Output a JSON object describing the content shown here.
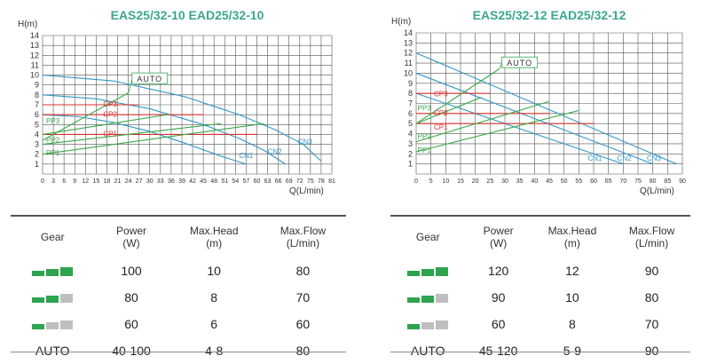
{
  "colors": {
    "grid": "#555555",
    "cn_curve": "#2f97c9",
    "cp_line": "#d9302c",
    "pp_line": "#3aa94a",
    "auto_line": "#3aa94a",
    "title": "#3aa78e",
    "gear_on": "#2ea44f",
    "gear_off": "#bfbfbf"
  },
  "chart_data": [
    {
      "type": "line",
      "title": "EAS25/32-10      EAD25/32-10",
      "ylabel": "H(m)",
      "xlabel": "Q(L/min)",
      "xlim": [
        0,
        81
      ],
      "ylim": [
        0,
        14
      ],
      "x_ticks": [
        0,
        3,
        6,
        9,
        12,
        15,
        18,
        21,
        24,
        27,
        30,
        33,
        36,
        39,
        42,
        45,
        48,
        51,
        54,
        57,
        60,
        63,
        66,
        69,
        72,
        75,
        78,
        81
      ],
      "y_ticks": [
        1,
        2,
        3,
        4,
        5,
        6,
        7,
        8,
        9,
        10,
        11,
        12,
        13,
        14
      ],
      "grid": true,
      "cn_labels": [
        "CN1",
        "CN2",
        "CN3"
      ],
      "cp_labels": [
        "CP1",
        "CP2",
        "CP3"
      ],
      "pp_labels": [
        "PP1",
        "PP2",
        "PP3"
      ],
      "auto_label": "AUTO",
      "series": [
        {
          "name": "CN1",
          "x": [
            0,
            10,
            20,
            30,
            40,
            50,
            57
          ],
          "y": [
            6,
            5.8,
            5.2,
            4.3,
            3.1,
            1.8,
            1
          ]
        },
        {
          "name": "CN2",
          "x": [
            0,
            15,
            30,
            45,
            55,
            62,
            68
          ],
          "y": [
            8,
            7.6,
            6.6,
            5,
            3.6,
            2.4,
            1
          ]
        },
        {
          "name": "CN3",
          "x": [
            0,
            20,
            40,
            55,
            65,
            73,
            78
          ],
          "y": [
            10,
            9.4,
            7.8,
            6,
            4.5,
            3,
            1.3
          ]
        },
        {
          "name": "CP1",
          "x": [
            0,
            60
          ],
          "y": [
            4,
            4
          ]
        },
        {
          "name": "CP2",
          "x": [
            0,
            45
          ],
          "y": [
            6,
            6
          ]
        },
        {
          "name": "CP3",
          "x": [
            0,
            27
          ],
          "y": [
            7,
            7
          ]
        },
        {
          "name": "PP1",
          "x": [
            0,
            62
          ],
          "y": [
            2,
            5.1
          ]
        },
        {
          "name": "PP2",
          "x": [
            0,
            50
          ],
          "y": [
            3,
            5.1
          ]
        },
        {
          "name": "PP3",
          "x": [
            0,
            35
          ],
          "y": [
            4,
            6
          ]
        },
        {
          "name": "AUTO",
          "x": [
            0,
            24
          ],
          "y": [
            3.4,
            8.2
          ]
        }
      ],
      "label_pos": {
        "CN1": [
          55,
          1.6
        ],
        "CN2": [
          63,
          2
        ],
        "CN3": [
          71.5,
          3
        ],
        "CP1": [
          17,
          3.8
        ],
        "CP2": [
          17,
          5.8
        ],
        "CP3": [
          17,
          6.8
        ],
        "PP1": [
          1,
          1.9
        ],
        "PP2": [
          1,
          3.2
        ],
        "PP3": [
          1,
          5.1
        ]
      },
      "auto_box": [
        30,
        9.5
      ]
    },
    {
      "type": "line",
      "title": "EAS25/32-12      EAD25/32-12",
      "ylabel": "H(m)",
      "xlabel": "Q(L/min)",
      "xlim": [
        0,
        90
      ],
      "ylim": [
        0,
        14
      ],
      "x_ticks": [
        0,
        5,
        10,
        15,
        20,
        25,
        30,
        35,
        40,
        45,
        50,
        55,
        60,
        65,
        70,
        75,
        80,
        85,
        90
      ],
      "y_ticks": [
        1,
        2,
        3,
        4,
        5,
        6,
        7,
        8,
        9,
        10,
        11,
        12,
        13,
        14
      ],
      "grid": true,
      "cn_labels": [
        "CN1",
        "CN2",
        "CN3"
      ],
      "cp_labels": [
        "CP1",
        "CP2",
        "CP3"
      ],
      "pp_labels": [
        "PP1",
        "PP2",
        "PP3"
      ],
      "auto_label": "AUTO",
      "series": [
        {
          "name": "CN1",
          "x": [
            0,
            70
          ],
          "y": [
            8,
            1
          ]
        },
        {
          "name": "CN2",
          "x": [
            0,
            80
          ],
          "y": [
            10,
            1
          ]
        },
        {
          "name": "CN3",
          "x": [
            0,
            88
          ],
          "y": [
            12,
            1
          ]
        },
        {
          "name": "CP1",
          "x": [
            0,
            60
          ],
          "y": [
            5,
            5
          ]
        },
        {
          "name": "CP2",
          "x": [
            0,
            45
          ],
          "y": [
            6,
            6
          ]
        },
        {
          "name": "CP3",
          "x": [
            0,
            25
          ],
          "y": [
            8,
            8
          ]
        },
        {
          "name": "PP1",
          "x": [
            0,
            55
          ],
          "y": [
            2.2,
            6.3
          ]
        },
        {
          "name": "PP2",
          "x": [
            0,
            45
          ],
          "y": [
            3.2,
            7.2
          ]
        },
        {
          "name": "PP3",
          "x": [
            0,
            22
          ],
          "y": [
            5,
            7.6
          ]
        },
        {
          "name": "AUTO",
          "x": [
            0,
            28
          ],
          "y": [
            5,
            10.4
          ]
        }
      ],
      "label_pos": {
        "CN1": [
          58,
          1.3
        ],
        "CN2": [
          68,
          1.3
        ],
        "CN3": [
          78,
          1.3
        ],
        "CP1": [
          6,
          4.4
        ],
        "CP2": [
          6,
          5.8
        ],
        "CP3": [
          6,
          7.7
        ],
        "PP1": [
          0.5,
          2.1
        ],
        "PP2": [
          0.5,
          3.5
        ],
        "PP3": [
          0.5,
          6.3
        ]
      },
      "auto_box": [
        35,
        10.9
      ]
    }
  ],
  "tables": [
    {
      "headers": [
        "Gear",
        "Power\n(W)",
        "Max.Head\n(m)",
        "Max.Flow\n(L/min)"
      ],
      "rows": [
        {
          "gear_level": 3,
          "power": "100",
          "head": "10",
          "flow": "80"
        },
        {
          "gear_level": 2,
          "power": "80",
          "head": "8",
          "flow": "70"
        },
        {
          "gear_level": 1,
          "power": "60",
          "head": "6",
          "flow": "60"
        },
        {
          "gear_text": "AUTO",
          "power": "40-100",
          "head": "4-8",
          "flow": "80"
        }
      ]
    },
    {
      "headers": [
        "Gear",
        "Power\n(W)",
        "Max.Head\n(m)",
        "Max.Flow\n(L/min)"
      ],
      "rows": [
        {
          "gear_level": 3,
          "power": "120",
          "head": "12",
          "flow": "90"
        },
        {
          "gear_level": 2,
          "power": "90",
          "head": "10",
          "flow": "80"
        },
        {
          "gear_level": 1,
          "power": "60",
          "head": "8",
          "flow": "70"
        },
        {
          "gear_text": "AUTO",
          "power": "45-120",
          "head": "5-9",
          "flow": "90"
        }
      ]
    }
  ]
}
